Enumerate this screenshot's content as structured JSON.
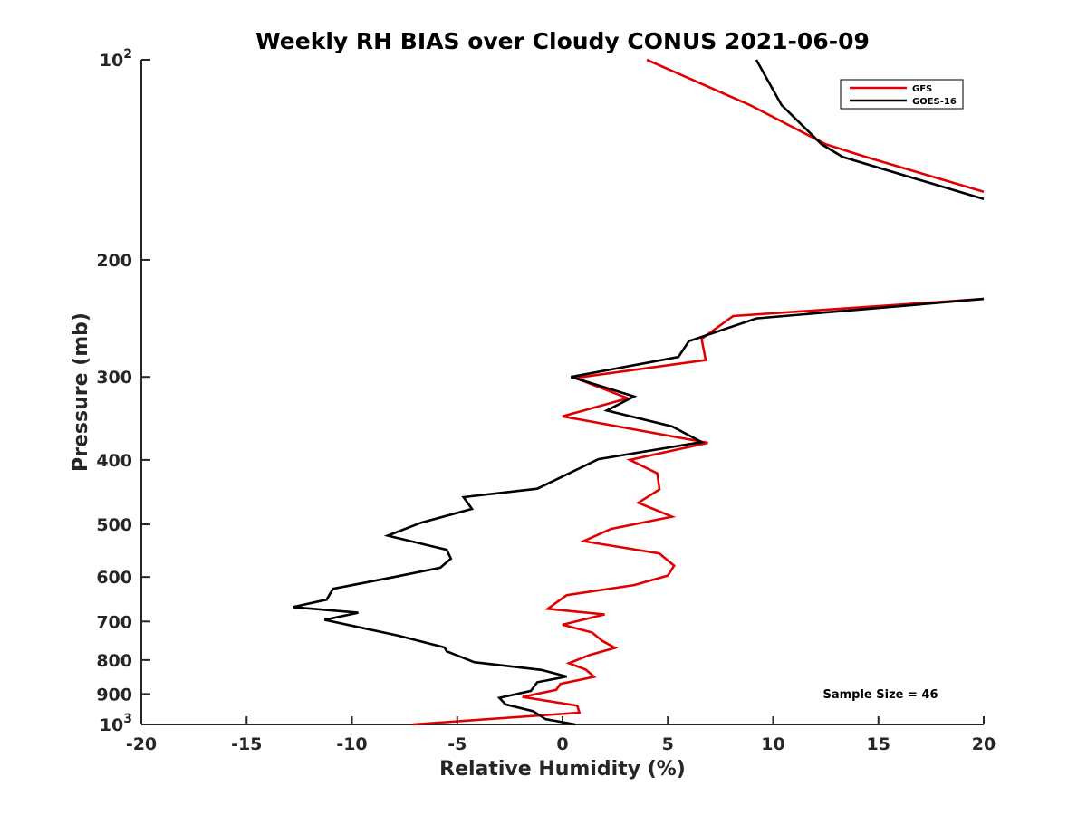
{
  "chart_data": {
    "type": "line",
    "title": "Weekly RH BIAS over Cloudy CONUS 2021-06-09",
    "xlabel": "Relative Humidity (%)",
    "ylabel": "Pressure (mb)",
    "xlim": [
      -20,
      20
    ],
    "ylim": [
      100,
      1000
    ],
    "y_scale": "log",
    "y_reversed": true,
    "x_ticks": [
      -20,
      -15,
      -10,
      -5,
      0,
      5,
      10,
      15,
      20
    ],
    "x_tick_labels": [
      "-20",
      "-15",
      "-10",
      "-5",
      "0",
      "5",
      "10",
      "15",
      "20"
    ],
    "y_ticks": [
      100,
      200,
      300,
      400,
      500,
      600,
      700,
      800,
      900,
      1000
    ],
    "y_tick_labels": [
      {
        "base": "10",
        "exp": "2"
      },
      {
        "base": "200",
        "exp": ""
      },
      {
        "base": "300",
        "exp": ""
      },
      {
        "base": "400",
        "exp": ""
      },
      {
        "base": "500",
        "exp": ""
      },
      {
        "base": "600",
        "exp": ""
      },
      {
        "base": "700",
        "exp": ""
      },
      {
        "base": "800",
        "exp": ""
      },
      {
        "base": "900",
        "exp": ""
      },
      {
        "base": "10",
        "exp": "3"
      }
    ],
    "grid": false,
    "legend_position": "top-right",
    "annotation": "Sample Size = 46",
    "series": [
      {
        "name": "GFS",
        "color": "#e00000",
        "segments": [
          [
            {
              "x": 4.0,
              "y": 100
            },
            {
              "x": 8.9,
              "y": 117
            },
            {
              "x": 12.5,
              "y": 134
            },
            {
              "x": 14.4,
              "y": 140
            },
            {
              "x": 20.0,
              "y": 158
            }
          ],
          [
            {
              "x": 20.0,
              "y": 229
            },
            {
              "x": 8.1,
              "y": 243
            },
            {
              "x": 6.6,
              "y": 263
            },
            {
              "x": 6.8,
              "y": 283
            },
            {
              "x": 0.6,
              "y": 301
            },
            {
              "x": 3.1,
              "y": 323
            },
            {
              "x": 0.0,
              "y": 344
            },
            {
              "x": 6.9,
              "y": 377
            },
            {
              "x": 3.2,
              "y": 400
            },
            {
              "x": 4.5,
              "y": 419
            },
            {
              "x": 4.6,
              "y": 443
            },
            {
              "x": 3.6,
              "y": 464
            },
            {
              "x": 5.2,
              "y": 487
            },
            {
              "x": 2.3,
              "y": 508
            },
            {
              "x": 1.0,
              "y": 530
            },
            {
              "x": 4.6,
              "y": 553
            },
            {
              "x": 5.3,
              "y": 577
            },
            {
              "x": 5.0,
              "y": 597
            },
            {
              "x": 3.4,
              "y": 617
            },
            {
              "x": 0.2,
              "y": 639
            },
            {
              "x": -0.7,
              "y": 670
            },
            {
              "x": 2.0,
              "y": 683
            },
            {
              "x": 0.0,
              "y": 708
            },
            {
              "x": 1.4,
              "y": 727
            },
            {
              "x": 1.9,
              "y": 749
            },
            {
              "x": 2.5,
              "y": 767
            },
            {
              "x": 1.3,
              "y": 786
            },
            {
              "x": 0.3,
              "y": 809
            },
            {
              "x": 1.1,
              "y": 827
            },
            {
              "x": 1.5,
              "y": 848
            },
            {
              "x": -0.1,
              "y": 869
            },
            {
              "x": -0.3,
              "y": 887
            },
            {
              "x": -1.9,
              "y": 909
            },
            {
              "x": 0.7,
              "y": 937
            },
            {
              "x": 0.8,
              "y": 960
            },
            {
              "x": -7.1,
              "y": 1000
            }
          ]
        ]
      },
      {
        "name": "GOES-16",
        "color": "#000000",
        "segments": [
          [
            {
              "x": 9.2,
              "y": 100
            },
            {
              "x": 10.4,
              "y": 117
            },
            {
              "x": 12.3,
              "y": 134
            },
            {
              "x": 13.3,
              "y": 140
            },
            {
              "x": 20.0,
              "y": 162
            }
          ],
          [
            {
              "x": 20.0,
              "y": 229
            },
            {
              "x": 9.2,
              "y": 245
            },
            {
              "x": 6.0,
              "y": 265
            },
            {
              "x": 5.5,
              "y": 280
            },
            {
              "x": 0.4,
              "y": 300
            },
            {
              "x": 3.4,
              "y": 321
            },
            {
              "x": 2.1,
              "y": 337
            },
            {
              "x": 5.2,
              "y": 356
            },
            {
              "x": 6.6,
              "y": 376
            },
            {
              "x": 1.7,
              "y": 399
            },
            {
              "x": -1.2,
              "y": 442
            },
            {
              "x": -4.7,
              "y": 455
            },
            {
              "x": -4.3,
              "y": 474
            },
            {
              "x": -6.7,
              "y": 497
            },
            {
              "x": -8.3,
              "y": 520
            },
            {
              "x": -5.5,
              "y": 546
            },
            {
              "x": -5.3,
              "y": 563
            },
            {
              "x": -5.8,
              "y": 581
            },
            {
              "x": -8.0,
              "y": 600
            },
            {
              "x": -10.9,
              "y": 625
            },
            {
              "x": -11.2,
              "y": 649
            },
            {
              "x": -12.8,
              "y": 666
            },
            {
              "x": -9.7,
              "y": 679
            },
            {
              "x": -11.3,
              "y": 696
            },
            {
              "x": -7.8,
              "y": 735
            },
            {
              "x": -5.6,
              "y": 766
            },
            {
              "x": -5.5,
              "y": 776
            },
            {
              "x": -4.2,
              "y": 806
            },
            {
              "x": -1.0,
              "y": 828
            },
            {
              "x": 0.2,
              "y": 847
            },
            {
              "x": -1.2,
              "y": 864
            },
            {
              "x": -1.5,
              "y": 890
            },
            {
              "x": -3.0,
              "y": 912
            },
            {
              "x": -2.7,
              "y": 933
            },
            {
              "x": -1.4,
              "y": 955
            },
            {
              "x": -0.8,
              "y": 982
            },
            {
              "x": 0.6,
              "y": 1000
            }
          ]
        ]
      }
    ]
  }
}
